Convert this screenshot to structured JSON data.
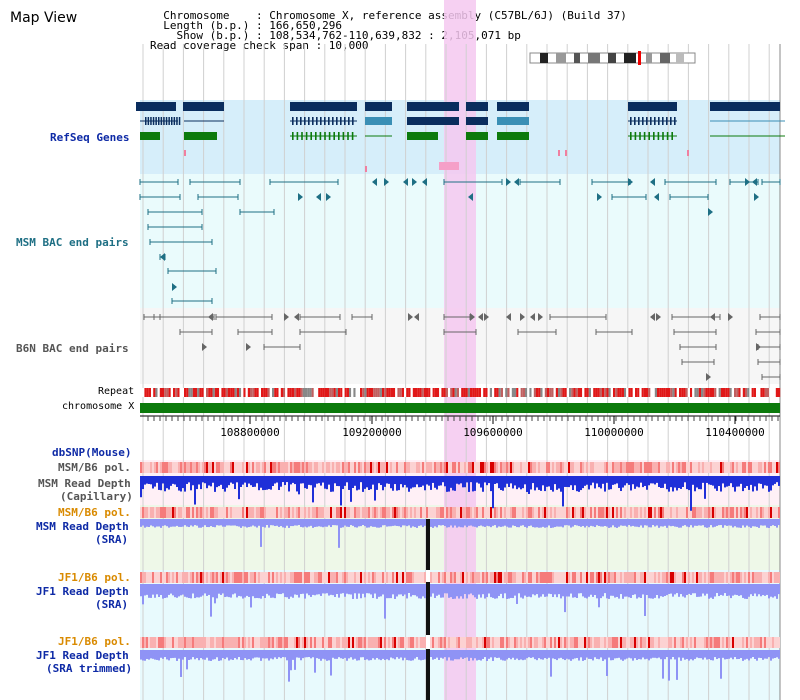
{
  "title": "Map View",
  "info": {
    "lines": [
      "  Chromosome    : Chromosome X, reference assembly (C57BL/6J) (Build 37)",
      "  Length (b.p.) : 166,650,296",
      "    Show (b.p.) : 108,534,762-110,639,832 : 2,105,071 bp",
      "Read coverage check span : 10,000"
    ]
  },
  "tracks": {
    "refseq": "RefSeq Genes",
    "msm_bac": "MSM BAC end pairs",
    "b6n_bac": "B6N BAC end pairs",
    "repeat": "Repeat",
    "chromosome": "chromosome X",
    "dbsnp": "dbSNP(Mouse)",
    "msm_b6_pol_1": "MSM/B6 pol.",
    "msm_depth_cap_1": "MSM Read Depth",
    "msm_depth_cap_2": "(Capillary)",
    "msm_b6_pol_2": "MSM/B6 pol.",
    "msm_depth_sra_1": "MSM Read Depth",
    "msm_depth_sra_2": "(SRA)",
    "jf1_b6_pol_1": "JF1/B6 pol.",
    "jf1_depth_sra_1": "JF1 Read Depth",
    "jf1_depth_sra_2": "(SRA)",
    "jf1_b6_pol_2": "JF1/B6 pol.",
    "jf1_depth_trim_1": "JF1 Read Depth",
    "jf1_depth_trim_2": "(SRA trimmed)"
  },
  "axis": {
    "ticks": [
      "108800000",
      "109200000",
      "109600000",
      "110000000",
      "110400000"
    ]
  },
  "colors": {
    "refseq_dark": "#0a2d5e",
    "refseq_green": "#0c7a0c",
    "refseq_blue_bg": "#d6eefa",
    "highlight": "#f5c8f0",
    "bac_teal": "#1e6f84",
    "chrom_green": "#0c7a0c",
    "depth_blue": "#1f2fd8",
    "depth_light": "#8f93f5",
    "pol_red": "#e53030"
  }
}
